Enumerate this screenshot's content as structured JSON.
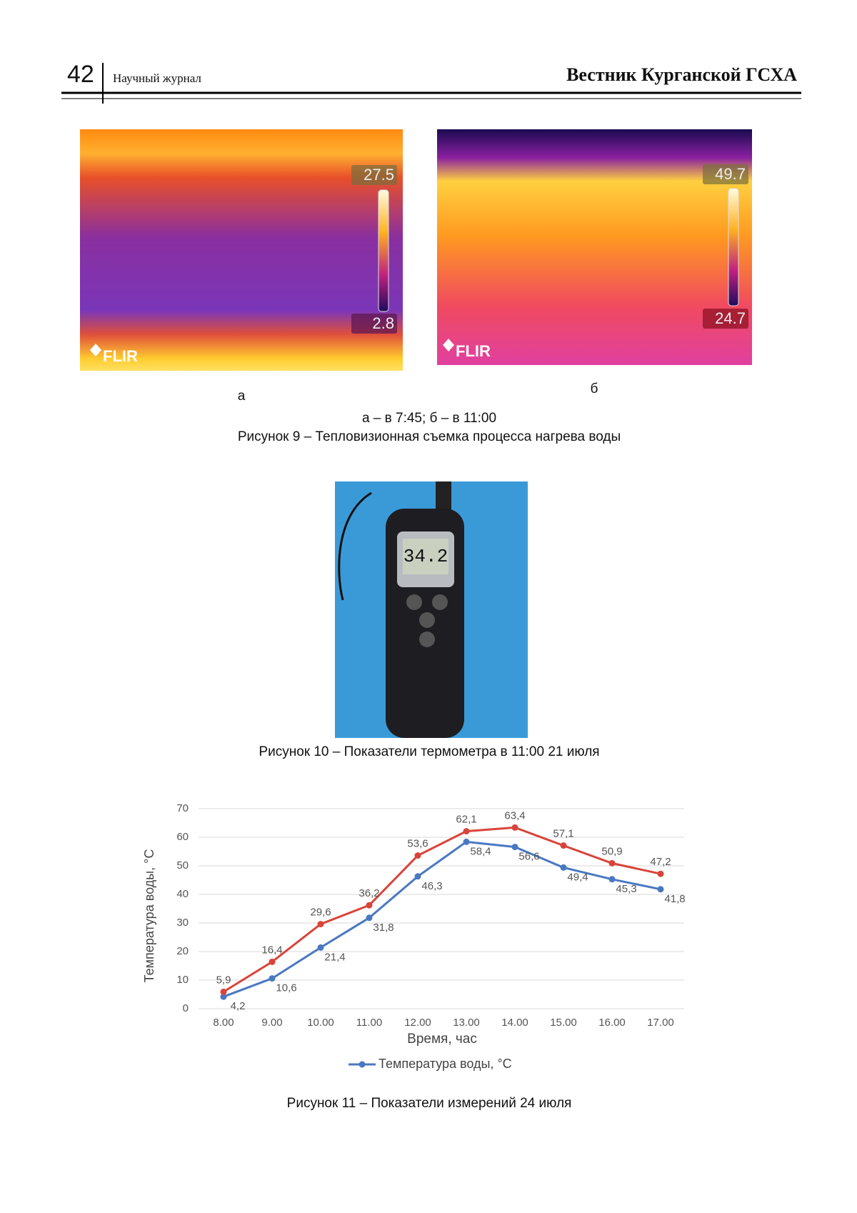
{
  "header": {
    "page_number": "42",
    "journal_type": "Научный журнал",
    "journal_title": "Вестник Курганской ГСХА"
  },
  "figure9": {
    "image_a": {
      "max": "27.5",
      "min": "2.8",
      "logo": "FLIR"
    },
    "image_b": {
      "max": "49.7",
      "min": "24.7",
      "logo": "FLIR"
    },
    "label_a": "а",
    "label_b": "б",
    "subcaption": "а – в 7:45; б – в 11:00",
    "caption": "Рисунок 9  – Тепловизионная съемка процесса нагрева воды"
  },
  "figure10": {
    "display": "34.2",
    "caption": "Рисунок 10 – Показатели термометра в 11:00 21 июля"
  },
  "chart_data": {
    "type": "line",
    "categories": [
      "8.00",
      "9.00",
      "10.00",
      "11.00",
      "12.00",
      "13.00",
      "14.00",
      "15.00",
      "16.00",
      "17.00"
    ],
    "series": [
      {
        "name": "Температура воды, °С",
        "color": "#4a78c2",
        "values": [
          4.2,
          10.6,
          21.4,
          31.8,
          46.3,
          58.4,
          56.6,
          49.4,
          45.3,
          41.8
        ],
        "value_labels": [
          "4,2",
          "10,6",
          "21,4",
          "31,8",
          "46,3",
          "58,4",
          "56,6",
          "49,4",
          "45,3",
          "41,8"
        ]
      },
      {
        "color": "#d9443a",
        "values": [
          5.9,
          16.4,
          29.6,
          36.2,
          53.6,
          62.1,
          63.4,
          57.1,
          50.9,
          47.2
        ],
        "value_labels": [
          "5,9",
          "16,4",
          "29,6",
          "36,2",
          "53,6",
          "62,1",
          "63,4",
          "57,1",
          "50,9",
          "47,2"
        ]
      }
    ],
    "ylim": [
      0,
      70
    ],
    "yticks": [
      0,
      10,
      20,
      30,
      40,
      50,
      60,
      70
    ],
    "grid": true,
    "y_label": "Температура воды, °С",
    "x_label": "Время, час",
    "legend": "bottom"
  },
  "figure11": {
    "caption": "Рисунок 11 – Показатели измерений 24 июля"
  }
}
